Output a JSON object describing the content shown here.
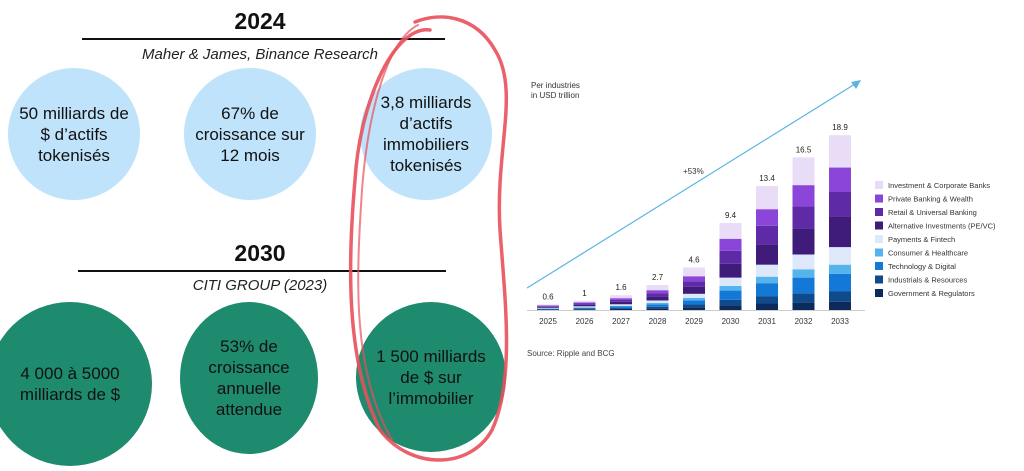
{
  "sections": [
    {
      "year": "2024",
      "source": "Maher & James, Binance Research",
      "circles": [
        {
          "text": "50 milliards de $ d’actifs tokenisés"
        },
        {
          "text": "67% de croissance sur 12 mois"
        },
        {
          "text": "3,8 milliards d’actifs immobiliers tokenisés"
        }
      ]
    },
    {
      "year": "2030",
      "source": "CITI GROUP (2023)",
      "circles": [
        {
          "text": "4 000 à 5000 milliards de $"
        },
        {
          "text": "53% de croissance annuelle attendue"
        },
        {
          "text": "1 500 milliards de $ sur l’immobilier"
        }
      ]
    }
  ],
  "colors": {
    "circle_top": "#bfe3fa",
    "circle_bottom": "#1e8a6e",
    "highlight_ring": "#e8505b",
    "trend_arrow": "#5bb3e3"
  },
  "chart_data": {
    "type": "bar",
    "stacked": true,
    "title": "Per industries\nin USD trillion",
    "trend_label": "+53%",
    "source": "Source: Ripple and BCG",
    "legend_position": "right",
    "grid": false,
    "categories": [
      "2025",
      "2026",
      "2027",
      "2028",
      "2029",
      "2030",
      "2031",
      "2032",
      "2033"
    ],
    "totals": [
      0.6,
      1.0,
      1.6,
      2.7,
      4.6,
      9.4,
      13.4,
      16.5,
      18.9
    ],
    "ylim": [
      0,
      20
    ],
    "series": [
      {
        "name": "Government & Regulators",
        "color": "#0d2a5c",
        "values": [
          0.05,
          0.08,
          0.12,
          0.18,
          0.3,
          0.5,
          0.7,
          0.8,
          0.9
        ]
      },
      {
        "name": "Industrials & Resources",
        "color": "#0f4a8a",
        "values": [
          0.04,
          0.07,
          0.1,
          0.17,
          0.3,
          0.6,
          0.8,
          1.0,
          1.1
        ]
      },
      {
        "name": "Technology & Digital",
        "color": "#1479d6",
        "values": [
          0.06,
          0.1,
          0.16,
          0.27,
          0.45,
          1.0,
          1.4,
          1.7,
          1.9
        ]
      },
      {
        "name": "Consumer & Healthcare",
        "color": "#55b4ee",
        "values": [
          0.03,
          0.05,
          0.08,
          0.14,
          0.25,
          0.5,
          0.7,
          0.9,
          1.0
        ]
      },
      {
        "name": "Payments & Fintech",
        "color": "#dde8fb",
        "values": [
          0.06,
          0.1,
          0.16,
          0.27,
          0.45,
          0.9,
          1.3,
          1.6,
          1.9
        ]
      },
      {
        "name": "Alternative Investments (PE/VC)",
        "color": "#3f1c79",
        "values": [
          0.1,
          0.17,
          0.27,
          0.45,
          0.75,
          1.5,
          2.2,
          2.8,
          3.3
        ]
      },
      {
        "name": "Retail & Universal Banking",
        "color": "#5e2aa6",
        "values": [
          0.08,
          0.13,
          0.2,
          0.34,
          0.6,
          1.4,
          2.0,
          2.4,
          2.7
        ]
      },
      {
        "name": "Private Banking & Wealth",
        "color": "#8b45d9",
        "values": [
          0.07,
          0.12,
          0.19,
          0.32,
          0.55,
          1.3,
          1.8,
          2.3,
          2.6
        ]
      },
      {
        "name": "Investment & Corporate Banks",
        "color": "#e9dcf7",
        "values": [
          0.11,
          0.18,
          0.32,
          0.56,
          0.95,
          1.7,
          2.5,
          3.0,
          3.5
        ]
      }
    ]
  }
}
